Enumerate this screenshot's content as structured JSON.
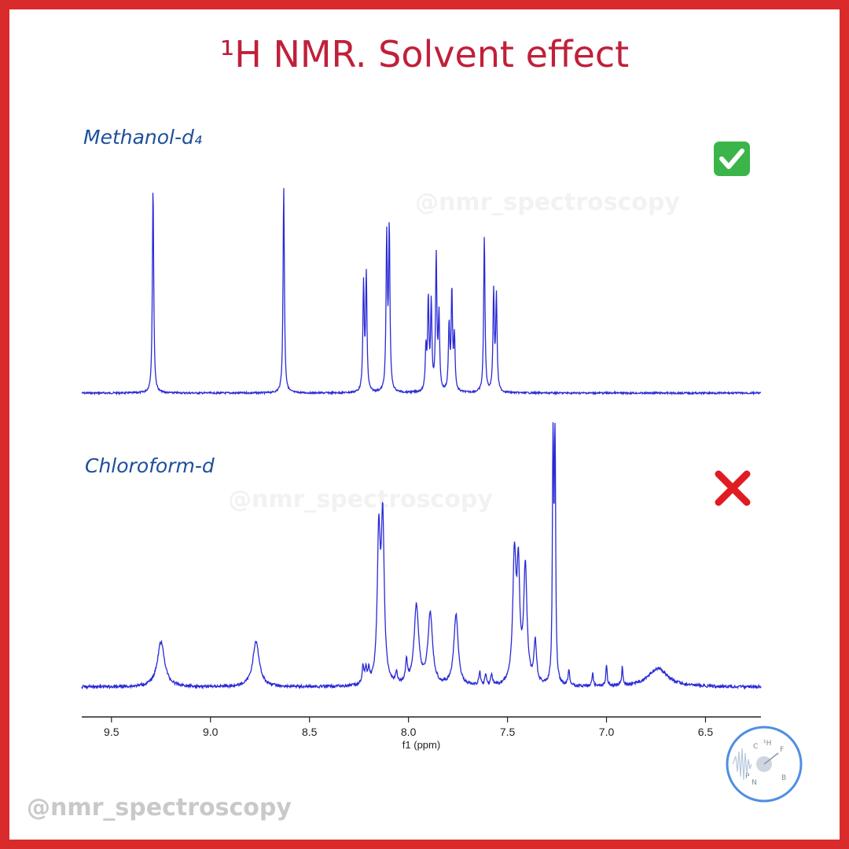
{
  "title": "¹H NMR. Solvent effect",
  "watermark": "@nmr_spectroscopy",
  "logo": {
    "icon": "nmr-logo-icon",
    "letters": [
      "¹H",
      "F",
      "B",
      "N",
      "P",
      "C"
    ]
  },
  "chart_data": {
    "type": "line",
    "xlabel": "f1 (ppm)",
    "xlim": [
      9.65,
      6.22
    ],
    "x_reversed": true,
    "ticks": [
      9.5,
      9.0,
      8.5,
      8.0,
      7.5,
      7.0,
      6.5
    ],
    "tick_labels": [
      "9.5",
      "9.0",
      "8.5",
      "8.0",
      "7.5",
      "7.0",
      "6.5"
    ],
    "color": "#2a2ad6",
    "series": [
      {
        "name": "Methanol-d₄",
        "status_icon": "check-icon",
        "status_color": "#3bb54a",
        "peaks": [
          {
            "ppm": 9.29,
            "height": 1.0,
            "width": 0.004
          },
          {
            "ppm": 8.63,
            "height": 1.0,
            "width": 0.004
          },
          {
            "ppm": 8.227,
            "height": 0.52,
            "width": 0.004
          },
          {
            "ppm": 8.213,
            "height": 0.56,
            "width": 0.004
          },
          {
            "ppm": 8.11,
            "height": 0.74,
            "width": 0.004
          },
          {
            "ppm": 8.097,
            "height": 0.78,
            "width": 0.004
          },
          {
            "ppm": 7.912,
            "height": 0.2,
            "width": 0.004
          },
          {
            "ppm": 7.9,
            "height": 0.44,
            "width": 0.004
          },
          {
            "ppm": 7.885,
            "height": 0.42,
            "width": 0.004
          },
          {
            "ppm": 7.86,
            "height": 0.65,
            "width": 0.004
          },
          {
            "ppm": 7.846,
            "height": 0.36,
            "width": 0.004
          },
          {
            "ppm": 7.795,
            "height": 0.32,
            "width": 0.004
          },
          {
            "ppm": 7.781,
            "height": 0.48,
            "width": 0.004
          },
          {
            "ppm": 7.768,
            "height": 0.26,
            "width": 0.004
          },
          {
            "ppm": 7.617,
            "height": 0.76,
            "width": 0.004
          },
          {
            "ppm": 7.57,
            "height": 0.48,
            "width": 0.004
          },
          {
            "ppm": 7.556,
            "height": 0.46,
            "width": 0.004
          }
        ]
      },
      {
        "name": "Chloroform-d",
        "status_icon": "cross-icon",
        "status_color": "#e01b22",
        "peaks": [
          {
            "ppm": 9.25,
            "height": 0.17,
            "width": 0.022
          },
          {
            "ppm": 8.77,
            "height": 0.17,
            "width": 0.02
          },
          {
            "ppm": 8.23,
            "height": 0.07,
            "width": 0.005
          },
          {
            "ppm": 8.215,
            "height": 0.06,
            "width": 0.005
          },
          {
            "ppm": 8.2,
            "height": 0.05,
            "width": 0.005
          },
          {
            "ppm": 8.15,
            "height": 0.55,
            "width": 0.009
          },
          {
            "ppm": 8.13,
            "height": 0.6,
            "width": 0.009
          },
          {
            "ppm": 8.06,
            "height": 0.04,
            "width": 0.005
          },
          {
            "ppm": 8.01,
            "height": 0.08,
            "width": 0.006
          },
          {
            "ppm": 7.96,
            "height": 0.3,
            "width": 0.014
          },
          {
            "ppm": 7.89,
            "height": 0.27,
            "width": 0.014
          },
          {
            "ppm": 7.76,
            "height": 0.27,
            "width": 0.013
          },
          {
            "ppm": 7.64,
            "height": 0.05,
            "width": 0.005
          },
          {
            "ppm": 7.61,
            "height": 0.04,
            "width": 0.005
          },
          {
            "ppm": 7.58,
            "height": 0.04,
            "width": 0.005
          },
          {
            "ppm": 7.465,
            "height": 0.48,
            "width": 0.01
          },
          {
            "ppm": 7.445,
            "height": 0.4,
            "width": 0.008
          },
          {
            "ppm": 7.41,
            "height": 0.44,
            "width": 0.01
          },
          {
            "ppm": 7.36,
            "height": 0.16,
            "width": 0.008
          },
          {
            "ppm": 7.27,
            "height": 1.0,
            "width": 0.0035
          },
          {
            "ppm": 7.26,
            "height": 1.0,
            "width": 0.0035
          },
          {
            "ppm": 7.19,
            "height": 0.06,
            "width": 0.005
          },
          {
            "ppm": 7.07,
            "height": 0.05,
            "width": 0.004
          },
          {
            "ppm": 7.0,
            "height": 0.08,
            "width": 0.004
          },
          {
            "ppm": 6.92,
            "height": 0.07,
            "width": 0.004
          },
          {
            "ppm": 6.74,
            "height": 0.07,
            "width": 0.06
          }
        ]
      }
    ]
  }
}
